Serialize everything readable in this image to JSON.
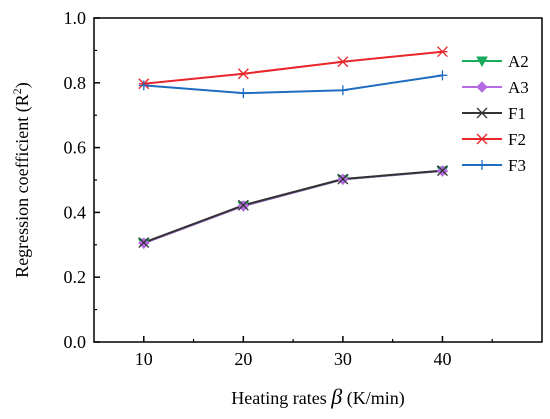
{
  "chart_data": {
    "type": "line",
    "xlabel_main": "Heating rates ",
    "xlabel_symbol": "β",
    "xlabel_unit": " (K/min)",
    "ylabel_main": "Regression coefficient (R",
    "ylabel_sup": "2",
    "ylabel_close": ")",
    "xlim": [
      5,
      50
    ],
    "ylim": [
      0.0,
      1.0
    ],
    "x_ticks": [
      10,
      20,
      30,
      40
    ],
    "x_tick_labels": [
      "10",
      "20",
      "30",
      "40"
    ],
    "y_ticks": [
      0.0,
      0.2,
      0.4,
      0.6,
      0.8,
      1.0
    ],
    "y_tick_labels": [
      "0.0",
      "0.2",
      "0.4",
      "0.6",
      "0.8",
      "1.0"
    ],
    "grid": false,
    "legend_position": "right",
    "series": [
      {
        "name": "A2",
        "x": [
          10,
          20,
          30,
          40
        ],
        "values": [
          0.305,
          0.42,
          0.502,
          0.528
        ],
        "color": "#1aaa5c",
        "marker": "triangle-down"
      },
      {
        "name": "A3",
        "x": [
          10,
          20,
          30,
          40
        ],
        "values": [
          0.305,
          0.42,
          0.502,
          0.528
        ],
        "color": "#b36ae2",
        "marker": "diamond"
      },
      {
        "name": "F1",
        "x": [
          10,
          20,
          30,
          40
        ],
        "values": [
          0.307,
          0.422,
          0.503,
          0.529
        ],
        "color": "#333333",
        "marker": "x"
      },
      {
        "name": "F2",
        "x": [
          10,
          20,
          30,
          40
        ],
        "values": [
          0.797,
          0.828,
          0.865,
          0.896
        ],
        "color": "#e8262b",
        "marker": "asterisk"
      },
      {
        "name": "F3",
        "x": [
          10,
          20,
          30,
          40
        ],
        "values": [
          0.792,
          0.768,
          0.777,
          0.823
        ],
        "color": "#1f6cc0",
        "marker": "plus"
      }
    ]
  }
}
